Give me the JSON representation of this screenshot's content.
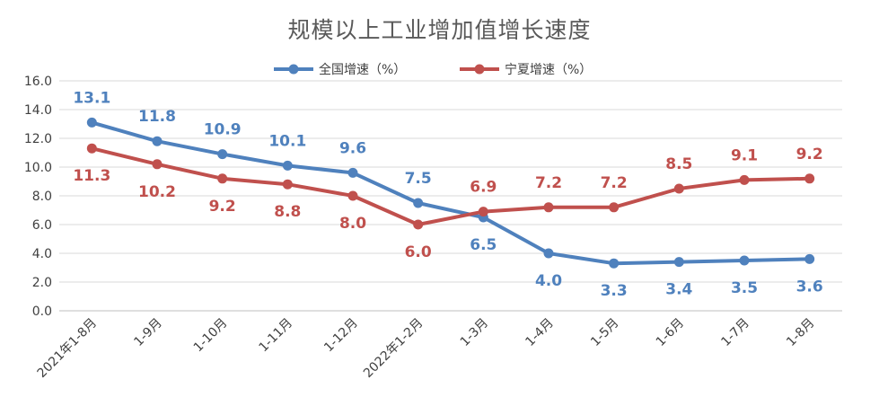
{
  "chart_data": {
    "type": "line",
    "title": "规模以上工业增加值增长速度",
    "categories": [
      "2021年1-8月",
      "1-9月",
      "1-10月",
      "1-11月",
      "1-12月",
      "2022年1-2月",
      "1-3月",
      "1-4月",
      "1-5月",
      "1-6月",
      "1-7月",
      "1-8月"
    ],
    "ylim": [
      0,
      16
    ],
    "yticks": [
      "0.0",
      "2.0",
      "4.0",
      "6.0",
      "8.0",
      "10.0",
      "12.0",
      "14.0",
      "16.0"
    ],
    "grid": true,
    "legend_position": "top",
    "series": [
      {
        "name": "全国增速（%）",
        "color": "#4F81BD",
        "values": [
          13.1,
          11.8,
          10.9,
          10.1,
          9.6,
          7.5,
          6.5,
          4.0,
          3.3,
          3.4,
          3.5,
          3.6
        ],
        "labels": [
          "13.1",
          "11.8",
          "10.9",
          "10.1",
          "9.6",
          "7.5",
          "6.5",
          "4.0",
          "3.3",
          "3.4",
          "3.5",
          "3.6"
        ]
      },
      {
        "name": "宁夏增速（%）",
        "color": "#C0504D",
        "values": [
          11.3,
          10.2,
          9.2,
          8.8,
          8.0,
          6.0,
          6.9,
          7.2,
          7.2,
          8.5,
          9.1,
          9.2
        ],
        "labels": [
          "11.3",
          "10.2",
          "9.2",
          "8.8",
          "8.0",
          "6.0",
          "6.9",
          "7.2",
          "7.2",
          "8.5",
          "9.1",
          "9.2"
        ]
      }
    ]
  }
}
